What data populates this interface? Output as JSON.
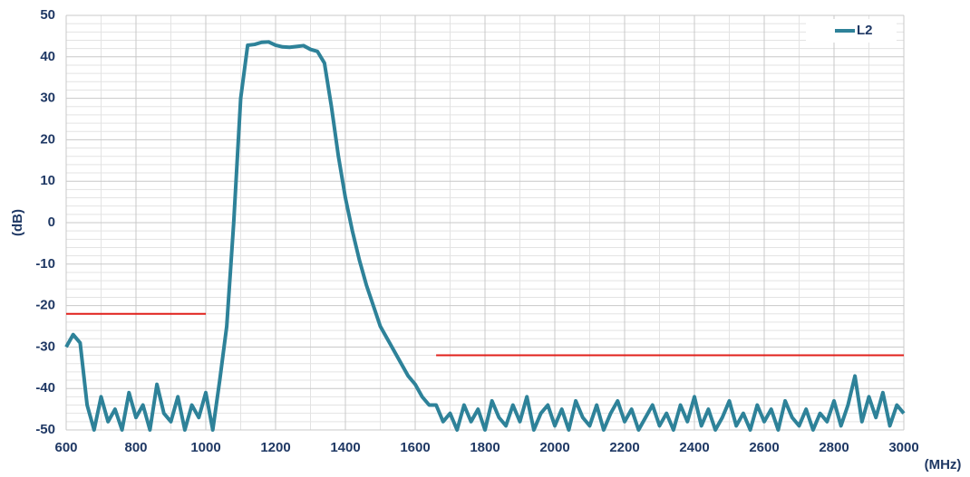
{
  "chart_data": {
    "type": "line",
    "xlabel": "(MHz)",
    "ylabel": "(dB)",
    "xlim": [
      600,
      3000
    ],
    "xticks": [
      600,
      800,
      1000,
      1200,
      1400,
      1600,
      1800,
      2000,
      2200,
      2400,
      2600,
      2800,
      3000
    ],
    "ylim": [
      -50,
      50
    ],
    "yticks": [
      -50,
      -40,
      -30,
      -20,
      -10,
      0,
      10,
      20,
      30,
      40,
      50
    ],
    "grid": true,
    "legend": "upper right",
    "x": [
      600,
      620,
      640,
      660,
      680,
      700,
      720,
      740,
      760,
      780,
      800,
      820,
      840,
      860,
      880,
      900,
      920,
      940,
      960,
      980,
      1000,
      1020,
      1040,
      1060,
      1080,
      1100,
      1120,
      1140,
      1160,
      1180,
      1200,
      1220,
      1240,
      1260,
      1280,
      1300,
      1320,
      1340,
      1360,
      1380,
      1400,
      1420,
      1440,
      1460,
      1480,
      1500,
      1520,
      1540,
      1560,
      1580,
      1600,
      1620,
      1640,
      1660,
      1680,
      1700,
      1720,
      1740,
      1760,
      1780,
      1800,
      1820,
      1840,
      1860,
      1880,
      1900,
      1920,
      1940,
      1960,
      1980,
      2000,
      2020,
      2040,
      2060,
      2080,
      2100,
      2120,
      2140,
      2160,
      2180,
      2200,
      2220,
      2240,
      2260,
      2280,
      2300,
      2320,
      2340,
      2360,
      2380,
      2400,
      2420,
      2440,
      2460,
      2480,
      2500,
      2520,
      2540,
      2560,
      2580,
      2600,
      2620,
      2640,
      2660,
      2680,
      2700,
      2720,
      2740,
      2760,
      2780,
      2800,
      2820,
      2840,
      2860,
      2880,
      2900,
      2920,
      2940,
      2960,
      2980,
      3000
    ],
    "series": [
      {
        "name": "L2",
        "color": "#2e8299",
        "values": [
          -30,
          -27,
          -29,
          -44,
          -50,
          -42,
          -48,
          -45,
          -50,
          -41,
          -47,
          -44,
          -50,
          -39,
          -46,
          -48,
          -42,
          -50,
          -44,
          -47,
          -41,
          -50,
          -38,
          -25,
          0,
          30,
          42.8,
          43,
          43.5,
          43.6,
          42.8,
          42.4,
          42.3,
          42.5,
          42.7,
          41.8,
          41.3,
          38.5,
          28,
          16,
          6,
          -2,
          -9,
          -15,
          -20,
          -25,
          -28,
          -31,
          -34,
          -37,
          -39,
          -42,
          -44,
          -44,
          -48,
          -46,
          -50,
          -44,
          -48,
          -45,
          -50,
          -43,
          -47,
          -49,
          -44,
          -48,
          -42,
          -50,
          -46,
          -44,
          -49,
          -45,
          -50,
          -43,
          -47,
          -49,
          -44,
          -50,
          -46,
          -43,
          -48,
          -45,
          -50,
          -47,
          -44,
          -49,
          -46,
          -50,
          -44,
          -48,
          -42,
          -49,
          -45,
          -50,
          -47,
          -43,
          -49,
          -46,
          -50,
          -44,
          -48,
          -45,
          -50,
          -43,
          -47,
          -49,
          -45,
          -50,
          -46,
          -48,
          -43,
          -49,
          -44,
          -37,
          -48,
          -42,
          -47,
          -41,
          -49,
          -44,
          -46
        ]
      }
    ],
    "limit_lines": [
      {
        "x": [
          600,
          1000
        ],
        "y": -22,
        "color": "#e0201b"
      },
      {
        "x": [
          1660,
          3000
        ],
        "y": -32,
        "color": "#e0201b"
      }
    ]
  }
}
